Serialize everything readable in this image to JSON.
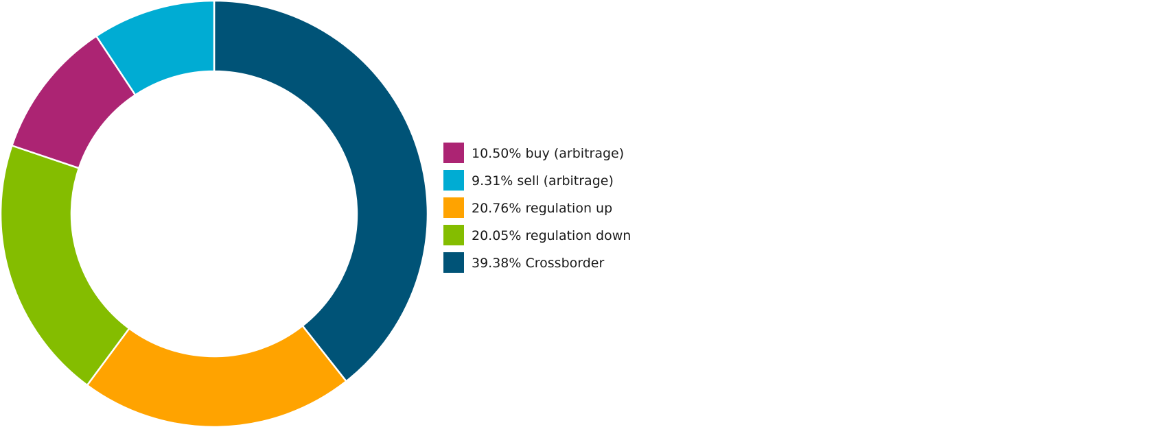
{
  "chart_data": {
    "type": "pie",
    "style": "donut",
    "legend_position": "right",
    "slices": [
      {
        "label": "Crossborder",
        "value": 39.38,
        "legend_text": "39.38% Crossborder",
        "color": "#005377"
      },
      {
        "label": "regulation up",
        "value": 20.76,
        "legend_text": "20.76% regulation up",
        "color": "#ffa300"
      },
      {
        "label": "regulation down",
        "value": 20.05,
        "legend_text": "20.05% regulation down",
        "color": "#84bd00"
      },
      {
        "label": "buy (arbitrage)",
        "value": 10.5,
        "legend_text": "10.50% buy (arbitrage)",
        "color": "#ac2473"
      },
      {
        "label": "sell (arbitrage)",
        "value": 9.31,
        "legend_text": "9.31% sell (arbitrage)",
        "color": "#00acd3"
      }
    ],
    "legend_order": [
      "buy (arbitrage)",
      "sell (arbitrage)",
      "regulation up",
      "regulation down",
      "Crossborder"
    ]
  }
}
